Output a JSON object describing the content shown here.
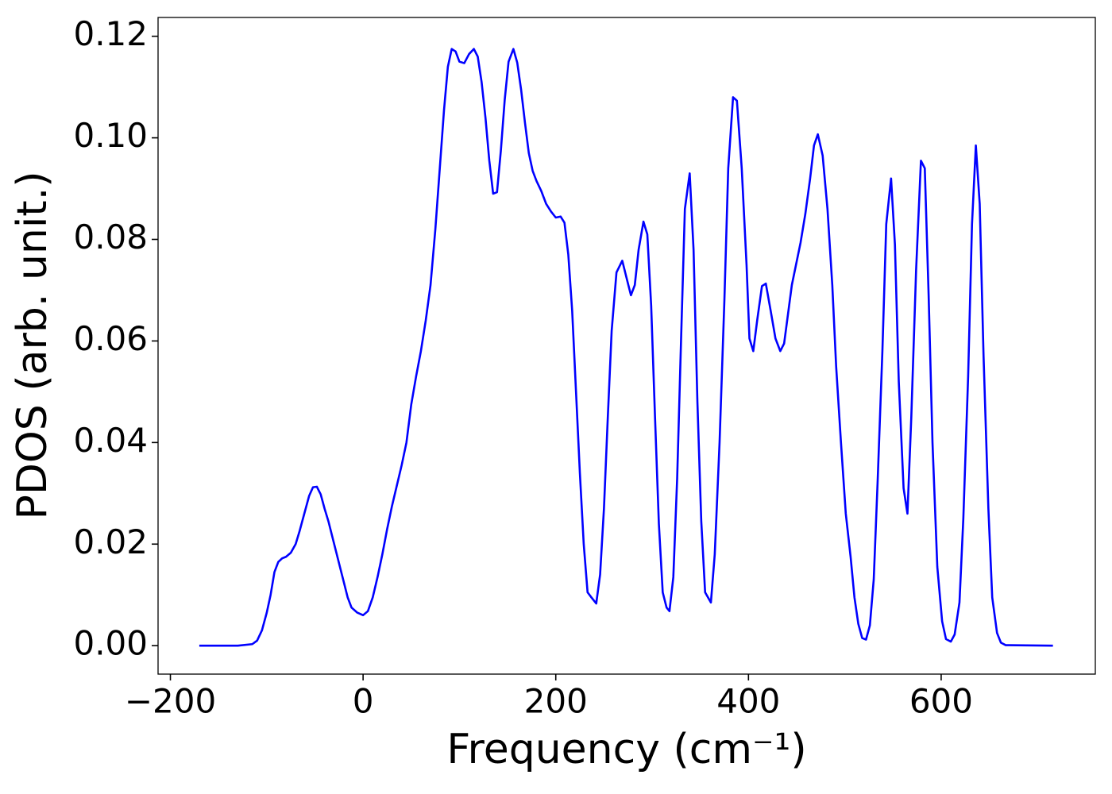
{
  "chart_data": {
    "type": "line",
    "xlabel": "Frequency (cm⁻¹)",
    "ylabel": "PDOS (arb. unit.)",
    "xlim": [
      -212.8,
      760
    ],
    "ylim": [
      -0.0056,
      0.1237
    ],
    "xticks": [
      {
        "value": -200,
        "label": "−200"
      },
      0,
      200,
      400,
      600
    ],
    "yticks": [
      {
        "value": 0,
        "label": "0.00"
      },
      {
        "value": 0.02,
        "label": "0.02"
      },
      {
        "value": 0.04,
        "label": "0.04"
      },
      {
        "value": 0.06,
        "label": "0.06"
      },
      {
        "value": 0.08,
        "label": "0.08"
      },
      {
        "value": 0.1,
        "label": "0.10"
      },
      {
        "value": 0.12,
        "label": "0.12"
      }
    ],
    "grid": false,
    "series": [
      {
        "color": "#0000ff",
        "x": [
          -170,
          -130,
          -115,
          -110,
          -105,
          -100,
          -96,
          -92,
          -88,
          -84,
          -80,
          -75,
          -70,
          -66,
          -61,
          -56,
          -52,
          -48,
          -44,
          -40,
          -36,
          -32,
          -28,
          -24,
          -20,
          -16,
          -12,
          -6,
          0,
          5,
          10,
          15,
          20,
          25,
          30,
          35,
          40,
          45,
          50,
          55,
          60,
          65,
          70,
          75,
          80,
          84,
          88,
          92,
          96,
          100,
          105,
          110,
          115,
          119,
          123,
          127,
          131,
          135,
          139,
          143,
          147,
          151,
          156,
          160,
          164,
          168,
          172,
          176,
          180,
          185,
          190,
          195,
          200,
          205,
          209,
          213,
          217,
          221,
          225,
          229,
          233,
          237,
          242,
          246,
          250,
          254,
          258,
          263,
          269,
          274,
          278,
          282,
          286,
          291,
          295,
          299,
          303,
          307,
          311,
          315,
          318,
          322,
          326,
          330,
          334,
          339,
          343,
          347,
          351,
          355,
          361,
          365,
          370,
          375,
          379,
          384,
          388,
          393,
          398,
          401,
          405,
          409,
          414,
          418,
          423,
          428,
          433,
          437,
          445,
          454,
          459,
          464,
          468,
          472,
          477,
          482,
          487,
          491,
          496,
          501,
          506,
          510,
          514,
          518,
          522,
          526,
          530,
          534,
          539,
          543,
          548,
          552,
          556,
          561,
          565,
          569,
          574,
          579,
          583,
          587,
          591,
          596,
          601,
          605,
          610,
          614,
          619,
          623,
          628,
          632,
          636,
          640,
          644,
          649,
          653,
          658,
          662,
          667,
          716
        ],
        "values": [
          0,
          0,
          0.0003,
          0.001,
          0.003,
          0.0065,
          0.01,
          0.0145,
          0.0165,
          0.0172,
          0.0175,
          0.0183,
          0.02,
          0.0225,
          0.026,
          0.0295,
          0.0312,
          0.0313,
          0.0298,
          0.027,
          0.0245,
          0.0215,
          0.0185,
          0.0155,
          0.0125,
          0.0095,
          0.0075,
          0.0065,
          0.006,
          0.0068,
          0.0095,
          0.0135,
          0.018,
          0.023,
          0.0275,
          0.0315,
          0.0355,
          0.04,
          0.0475,
          0.053,
          0.058,
          0.064,
          0.071,
          0.082,
          0.095,
          0.1055,
          0.114,
          0.1175,
          0.117,
          0.115,
          0.1147,
          0.1165,
          0.1175,
          0.116,
          0.111,
          0.104,
          0.0955,
          0.089,
          0.0893,
          0.0975,
          0.1075,
          0.115,
          0.1175,
          0.1148,
          0.1095,
          0.103,
          0.097,
          0.0935,
          0.0915,
          0.0895,
          0.087,
          0.0855,
          0.0843,
          0.0845,
          0.0833,
          0.077,
          0.066,
          0.05,
          0.034,
          0.02,
          0.0105,
          0.0095,
          0.0083,
          0.014,
          0.027,
          0.045,
          0.062,
          0.0735,
          0.0758,
          0.072,
          0.069,
          0.071,
          0.078,
          0.0835,
          0.081,
          0.067,
          0.045,
          0.024,
          0.0105,
          0.0075,
          0.0068,
          0.0135,
          0.033,
          0.06,
          0.086,
          0.093,
          0.078,
          0.048,
          0.0245,
          0.0105,
          0.0085,
          0.018,
          0.04,
          0.068,
          0.094,
          0.108,
          0.1073,
          0.094,
          0.075,
          0.0605,
          0.058,
          0.064,
          0.0708,
          0.0713,
          0.066,
          0.0605,
          0.058,
          0.0595,
          0.071,
          0.0793,
          0.085,
          0.092,
          0.0985,
          0.1007,
          0.0965,
          0.086,
          0.071,
          0.055,
          0.04,
          0.026,
          0.0175,
          0.0095,
          0.0043,
          0.0015,
          0.0012,
          0.004,
          0.013,
          0.032,
          0.058,
          0.083,
          0.092,
          0.079,
          0.052,
          0.031,
          0.026,
          0.045,
          0.074,
          0.0955,
          0.094,
          0.069,
          0.04,
          0.0155,
          0.0048,
          0.0013,
          0.0008,
          0.0022,
          0.0085,
          0.025,
          0.053,
          0.083,
          0.0985,
          0.087,
          0.057,
          0.027,
          0.0095,
          0.0025,
          0.0006,
          0.0001,
          0
        ]
      }
    ]
  }
}
